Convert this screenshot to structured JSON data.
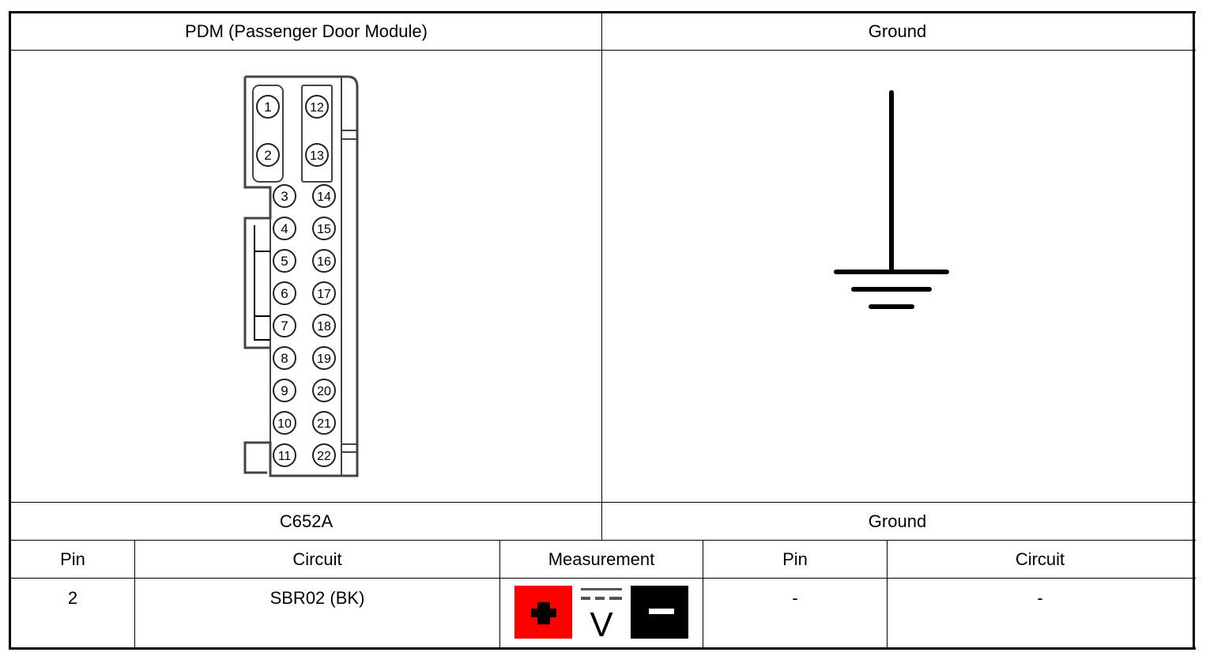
{
  "left_header": "PDM (Passenger Door Module)",
  "right_header": "Ground",
  "left_connector": "C652A",
  "right_connector": "Ground",
  "columns": {
    "pin": "Pin",
    "circuit": "Circuit",
    "measurement": "Measurement",
    "pin2": "Pin",
    "circuit2": "Circuit"
  },
  "row": {
    "pin": "2",
    "circuit": "SBR02 (BK)",
    "pin2": "-",
    "circuit2": "-"
  },
  "measurement": {
    "type": "DC voltage",
    "positive_color": "#ff0000",
    "negative_color": "#000000",
    "symbol": "V"
  },
  "connector_pins": [
    "1",
    "2",
    "3",
    "4",
    "5",
    "6",
    "7",
    "8",
    "9",
    "10",
    "11",
    "12",
    "13",
    "14",
    "15",
    "16",
    "17",
    "18",
    "19",
    "20",
    "21",
    "22"
  ]
}
